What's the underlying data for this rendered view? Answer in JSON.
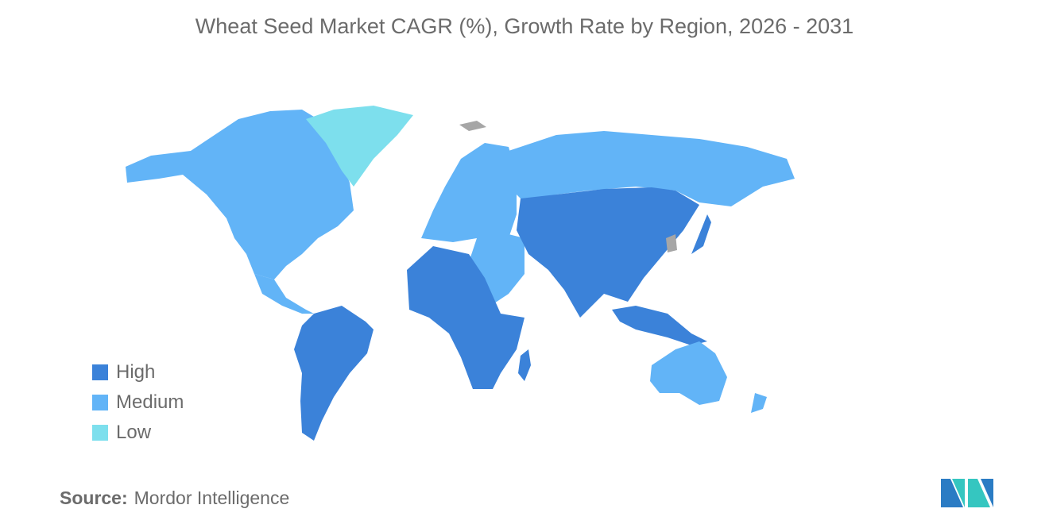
{
  "title": "Wheat Seed Market CAGR (%), Growth Rate by Region, 2026 - 2031",
  "legend": [
    {
      "label": "High",
      "color": "#3b82d9"
    },
    {
      "label": "Medium",
      "color": "#62b4f7"
    },
    {
      "label": "Low",
      "color": "#7ddfed"
    }
  ],
  "regions": {
    "north_america": "Medium",
    "greenland": "Low",
    "south_america": "High",
    "europe": "Medium",
    "russia": "Medium",
    "middle_east": "Medium",
    "africa": "High",
    "asia": "High",
    "japan": "High",
    "australia_new_zealand": "Medium"
  },
  "no_data_color": "#a6a6a6",
  "source": {
    "label": "Source:",
    "value": "Mordor Intelligence"
  }
}
